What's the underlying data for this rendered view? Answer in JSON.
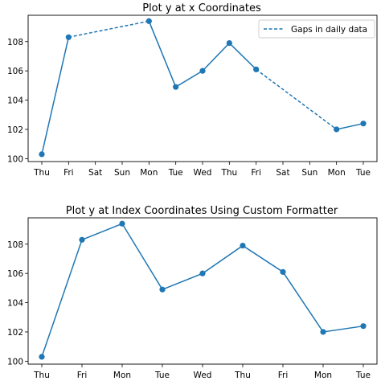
{
  "colors": {
    "series": "#1f77b4",
    "axes": "#000000",
    "background": "#ffffff"
  },
  "chart_data": [
    {
      "type": "line",
      "title": "Plot y at x Coordinates",
      "xlabel": "",
      "ylabel": "",
      "x_tick_labels": [
        "Thu",
        "Fri",
        "Sat",
        "Sun",
        "Mon",
        "Tue",
        "Wed",
        "Thu",
        "Fri",
        "Sat",
        "Sun",
        "Mon",
        "Tue"
      ],
      "x_positions": [
        0,
        1,
        4,
        5,
        6,
        7,
        8,
        11,
        12
      ],
      "values": [
        100.3,
        108.3,
        109.4,
        104.9,
        106.0,
        107.9,
        106.1,
        102.0,
        102.4
      ],
      "ylim": [
        99.8,
        109.8
      ],
      "yticks": [
        100,
        102,
        104,
        106,
        108
      ],
      "grid": false,
      "legend": {
        "location": "upper right",
        "entries": [
          "Gaps in daily data"
        ]
      },
      "gaps": [
        [
          1,
          4
        ],
        [
          8,
          11
        ]
      ]
    },
    {
      "type": "line",
      "title": "Plot y at Index Coordinates Using Custom Formatter",
      "xlabel": "",
      "ylabel": "",
      "categories": [
        "Thu",
        "Fri",
        "Mon",
        "Tue",
        "Wed",
        "Thu",
        "Fri",
        "Mon",
        "Tue"
      ],
      "values": [
        100.3,
        108.3,
        109.4,
        104.9,
        106.0,
        107.9,
        106.1,
        102.0,
        102.4
      ],
      "ylim": [
        99.8,
        109.8
      ],
      "yticks": [
        100,
        102,
        104,
        106,
        108
      ],
      "grid": false
    }
  ]
}
